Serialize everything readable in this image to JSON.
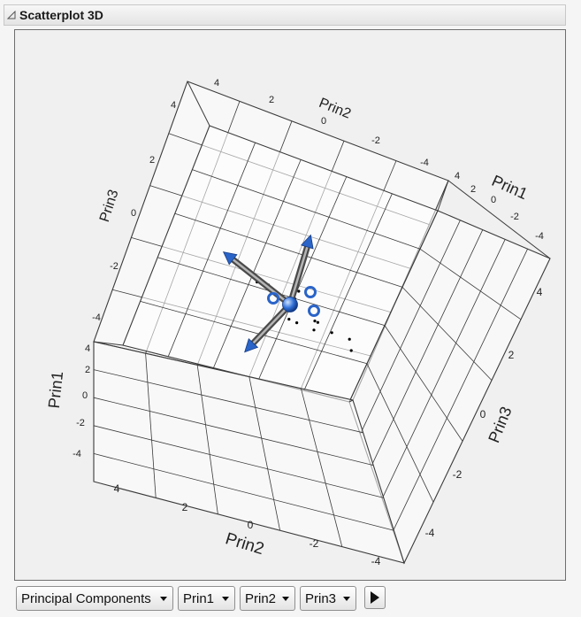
{
  "header": {
    "title": "Scatterplot 3D",
    "collapse_icon": "triangle-collapse-icon"
  },
  "chart_data": {
    "type": "scatter",
    "title": "",
    "axes": {
      "back_prin2": {
        "label": "Prin2",
        "ticks": [
          "4",
          "2",
          "0",
          "-2",
          "-4"
        ]
      },
      "back_prin1": {
        "label": "Prin1",
        "ticks": [
          "4",
          "2",
          "0",
          "-2",
          "-4"
        ]
      },
      "back_prin3": {
        "label": "Prin3",
        "ticks": [
          "4",
          "2",
          "0",
          "-2",
          "-4"
        ]
      },
      "front_prin1": {
        "label": "Prin1",
        "ticks": [
          "4",
          "2",
          "0",
          "-2",
          "-4"
        ]
      },
      "front_prin2": {
        "label": "Prin2",
        "ticks": [
          "4",
          "2",
          "0",
          "-2",
          "-4"
        ]
      },
      "front_prin3": {
        "label": "Prin3",
        "ticks": [
          "4",
          "2",
          "0",
          "-2",
          "-4"
        ]
      }
    },
    "xlim": [
      -5,
      5
    ],
    "ylim": [
      -5,
      5
    ],
    "zlim": [
      -5,
      5
    ],
    "grid": true,
    "biplot_rays": 3,
    "points": [
      {
        "x": 0.4,
        "y": 1.0,
        "z": 0.6
      },
      {
        "x": 0.1,
        "y": 0.8,
        "z": 0.8
      },
      {
        "x": -0.3,
        "y": 0.5,
        "z": 0.4
      },
      {
        "x": 0.9,
        "y": -0.4,
        "z": 0.1
      },
      {
        "x": -0.2,
        "y": -0.3,
        "z": -0.1
      },
      {
        "x": 0.3,
        "y": 0.2,
        "z": -0.5
      },
      {
        "x": -0.8,
        "y": 0.6,
        "z": -0.3
      },
      {
        "x": 1.2,
        "y": 0.3,
        "z": 0.9
      },
      {
        "x": 0.6,
        "y": -0.9,
        "z": 0.4
      },
      {
        "x": -0.5,
        "y": -0.6,
        "z": 0.7
      },
      {
        "x": 0.0,
        "y": 0.0,
        "z": 1.4
      },
      {
        "x": 1.4,
        "y": -1.4,
        "z": -0.6
      },
      {
        "x": 2.2,
        "y": -1.6,
        "z": -0.9
      },
      {
        "x": -1.3,
        "y": 0.9,
        "z": 0.2
      },
      {
        "x": 0.7,
        "y": 0.5,
        "z": -1.0
      },
      {
        "x": 1.8,
        "y": -3.0,
        "z": -1.5
      }
    ]
  },
  "controls": {
    "dropdowns": [
      {
        "label": "Principal Components"
      },
      {
        "label": "Prin1"
      },
      {
        "label": "Prin2"
      },
      {
        "label": "Prin3"
      }
    ],
    "next_icon": "arrow-right-icon"
  },
  "colors": {
    "grid": "#3a3a3a",
    "ray": "#707070",
    "arrow": "#2a64c8",
    "point": "#000000"
  }
}
